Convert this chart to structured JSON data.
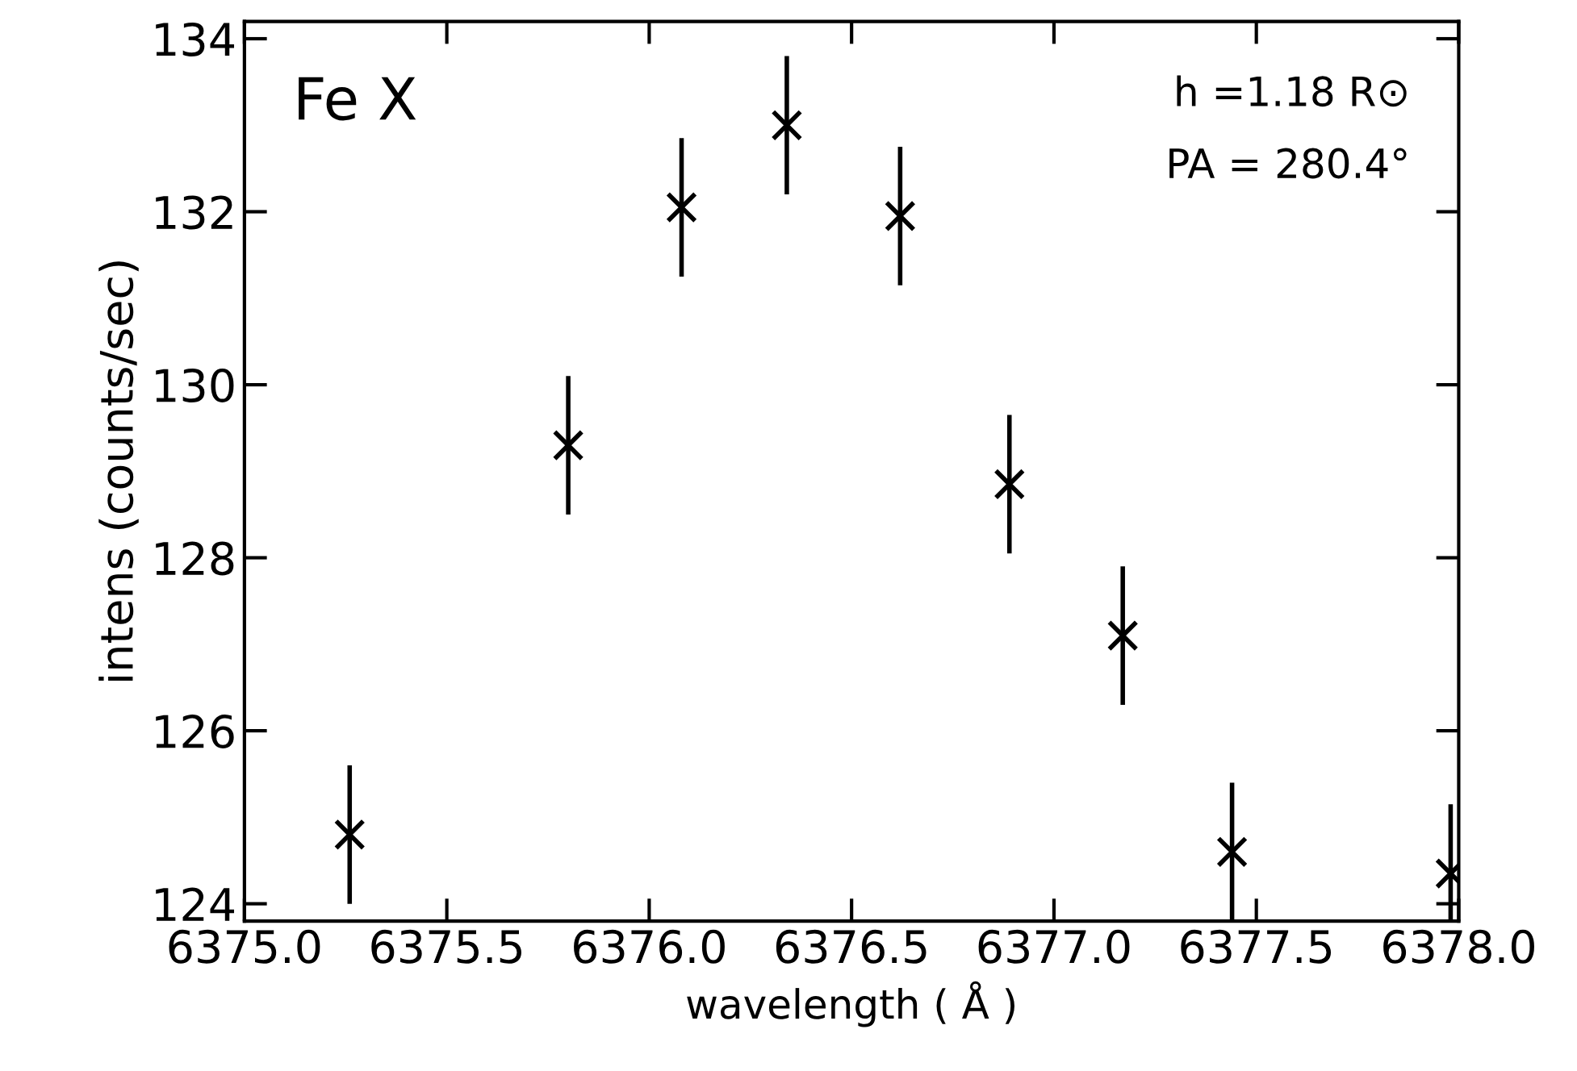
{
  "chart_data": {
    "type": "scatter",
    "xlabel": "wavelength ( Å )",
    "ylabel": "intens (counts/sec)",
    "annotations": [
      "Fe X",
      "h =1.18 R⊙",
      "PA = 280.4°"
    ],
    "x": [
      6375.26,
      6375.8,
      6376.08,
      6376.34,
      6376.62,
      6376.89,
      6377.17,
      6377.44,
      6377.98
    ],
    "series": [
      {
        "color": "#000000",
        "values": [
          124.8,
          129.3,
          132.05,
          133.0,
          131.95,
          128.85,
          127.1,
          124.6,
          124.35
        ],
        "errors": [
          0.8,
          0.8,
          0.8,
          0.8,
          0.8,
          0.8,
          0.8,
          [
            123.8,
            125.4
          ],
          [
            123.8,
            125.15
          ]
        ]
      }
    ],
    "marker": "cross",
    "xlim": [
      6375.0,
      6378.0
    ],
    "xticks": [
      {
        "value": 6375.0,
        "label": "6375.0"
      },
      {
        "value": 6375.5,
        "label": "6375.5"
      },
      {
        "value": 6376.0,
        "label": "6376.0"
      },
      {
        "value": 6376.5,
        "label": "6376.5"
      },
      {
        "value": 6377.0,
        "label": "6377.0"
      },
      {
        "value": 6377.5,
        "label": "6377.5"
      },
      {
        "value": 6378.0,
        "label": "6378.0"
      }
    ],
    "ylim": [
      123.8,
      134.2
    ],
    "yticks": [
      124,
      126,
      128,
      130,
      132,
      134
    ],
    "grid": false,
    "legend": false
  }
}
